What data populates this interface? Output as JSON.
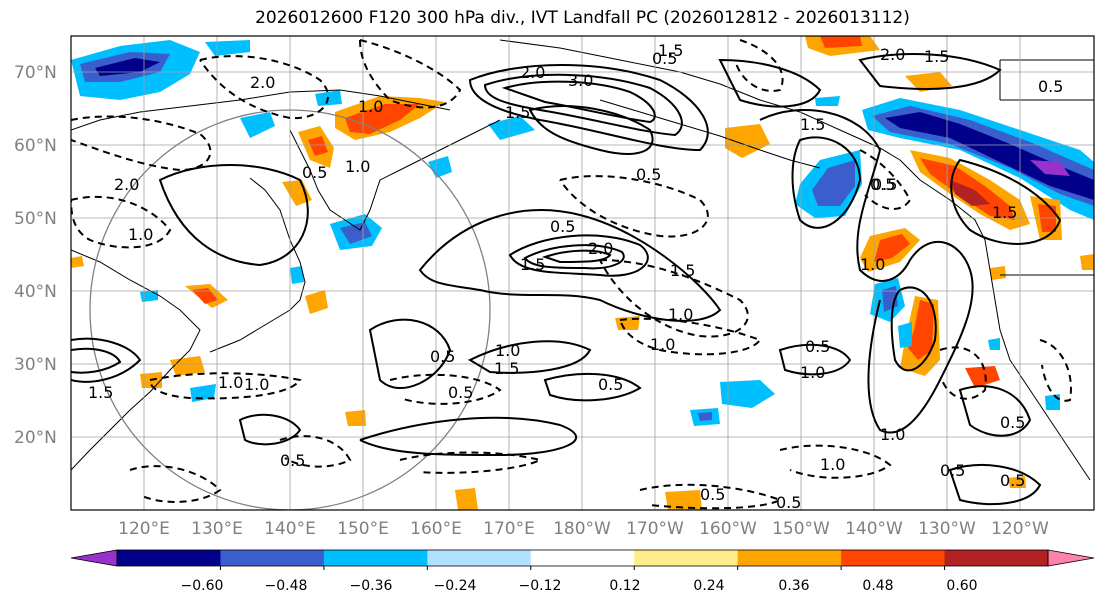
{
  "title": "2026012600 F120 300 hPa div., IVT Landfall PC (2026012812 - 2026013112)",
  "lat_labels": [
    "70°N",
    "60°N",
    "50°N",
    "40°N",
    "30°N",
    "20°N"
  ],
  "lon_labels": [
    "120°E",
    "130°E",
    "140°E",
    "150°E",
    "160°E",
    "170°E",
    "180°W",
    "170°W",
    "160°W",
    "150°W",
    "140°W",
    "130°W",
    "120°W"
  ],
  "colorbar": {
    "colors": [
      "#9932cc",
      "#00008b",
      "#3a5fcd",
      "#00bfff",
      "#b0e2ff",
      "#ffffff",
      "#ffec8b",
      "#ffa500",
      "#ff4500",
      "#b22222",
      "#ff82ab"
    ],
    "tick_labels": [
      "−0.60",
      "−0.48",
      "−0.36",
      "−0.24",
      "−0.12",
      "0.12",
      "0.24",
      "0.36",
      "0.48",
      "0.60"
    ]
  },
  "contour_labels": [
    "2.0",
    "3.0",
    "1.5",
    "1.5",
    "2.0",
    "0.5",
    "1.0",
    "0.5",
    "1.0",
    "1.5",
    "2.0",
    "1.0",
    "1.5",
    "1.0",
    "0.5",
    "1.0",
    "0.5",
    "0.5",
    "0.5",
    "1.5",
    "2.0",
    "1.0",
    "0.5",
    "1.5",
    "0.5",
    "1.0",
    "0.5",
    "1.0",
    "1.5",
    "0.5",
    "0.5",
    "1.0",
    "0.5",
    "0.5",
    "1.0",
    "0.5",
    "0.5",
    "1.5",
    "1.0",
    "2.0",
    "1.5",
    "1.0",
    "0.5",
    "0.5"
  ]
}
